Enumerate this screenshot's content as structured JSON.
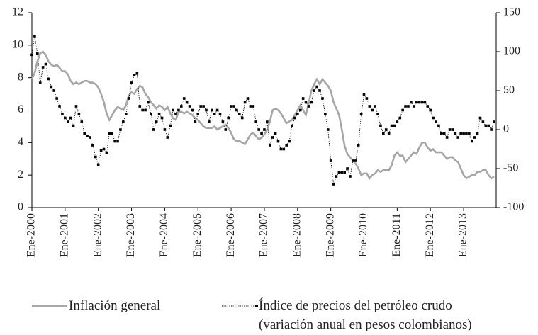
{
  "chart_data": {
    "type": "line",
    "categories": [
      "Ene-2000",
      null,
      null,
      null,
      null,
      null,
      null,
      null,
      null,
      null,
      null,
      null,
      "Ene-2001",
      null,
      null,
      null,
      null,
      null,
      null,
      null,
      null,
      null,
      null,
      null,
      "Ene-2002",
      null,
      null,
      null,
      null,
      null,
      null,
      null,
      null,
      null,
      null,
      null,
      "Ene-2003",
      null,
      null,
      null,
      null,
      null,
      null,
      null,
      null,
      null,
      null,
      null,
      "Ene-2004",
      null,
      null,
      null,
      null,
      null,
      null,
      null,
      null,
      null,
      null,
      null,
      "Ene-2005",
      null,
      null,
      null,
      null,
      null,
      null,
      null,
      null,
      null,
      null,
      null,
      "Ene-2006",
      null,
      null,
      null,
      null,
      null,
      null,
      null,
      null,
      null,
      null,
      null,
      "Ene-2007",
      null,
      null,
      null,
      null,
      null,
      null,
      null,
      null,
      null,
      null,
      null,
      "Ene-2008",
      null,
      null,
      null,
      null,
      null,
      null,
      null,
      null,
      null,
      null,
      null,
      "Ene-2009",
      null,
      null,
      null,
      null,
      null,
      null,
      null,
      null,
      null,
      null,
      null,
      "Ene-2010",
      null,
      null,
      null,
      null,
      null,
      null,
      null,
      null,
      null,
      null,
      null,
      "Ene-2011",
      null,
      null,
      null,
      null,
      null,
      null,
      null,
      null,
      null,
      null,
      null,
      "Ene-2012",
      null,
      null,
      null,
      null,
      null,
      null,
      null,
      null,
      null,
      null,
      null,
      "Ene-2013",
      null,
      null,
      null,
      null,
      null,
      null,
      null,
      null,
      null,
      null,
      null
    ],
    "series": [
      {
        "name": "Inflación general",
        "color": "#a6a6a6",
        "axis": "y",
        "values": [
          7.9,
          8.3,
          9.0,
          9.5,
          9.6,
          9.4,
          9.0,
          8.8,
          8.7,
          8.8,
          8.6,
          8.4,
          8.4,
          8.2,
          7.8,
          7.6,
          7.7,
          7.6,
          7.7,
          7.8,
          7.8,
          7.7,
          7.7,
          7.6,
          7.4,
          7.0,
          6.5,
          5.8,
          5.4,
          5.7,
          6.0,
          6.2,
          6.1,
          6.0,
          6.3,
          6.9,
          7.1,
          7.0,
          7.3,
          7.5,
          7.4,
          7.0,
          6.8,
          6.5,
          6.3,
          6.1,
          6.3,
          6.2,
          6.0,
          6.2,
          5.8,
          5.5,
          5.4,
          5.9,
          5.9,
          5.8,
          5.9,
          5.8,
          5.7,
          5.5,
          5.4,
          5.2,
          5.0,
          4.9,
          4.9,
          4.9,
          5.0,
          4.8,
          4.9,
          5.0,
          5.1,
          4.9,
          4.6,
          4.2,
          4.1,
          4.1,
          4.0,
          3.9,
          4.2,
          4.5,
          4.6,
          4.4,
          4.2,
          4.3,
          4.5,
          4.8,
          5.3,
          6.0,
          6.1,
          6.0,
          5.8,
          5.5,
          5.2,
          5.3,
          5.4,
          5.7,
          6.0,
          6.3,
          6.0,
          5.7,
          6.4,
          7.2,
          7.6,
          7.9,
          7.6,
          7.9,
          7.7,
          7.5,
          7.2,
          6.5,
          6.1,
          5.7,
          4.8,
          3.8,
          3.3,
          3.1,
          2.9,
          2.7,
          2.4,
          2.0,
          2.1,
          2.1,
          1.8,
          2.0,
          2.1,
          2.3,
          2.2,
          2.3,
          2.3,
          2.3,
          2.6,
          3.2,
          3.4,
          3.2,
          3.2,
          2.8,
          3.0,
          3.2,
          3.4,
          3.3,
          3.7,
          4.0,
          4.0,
          3.7,
          3.5,
          3.6,
          3.4,
          3.4,
          3.4,
          3.2,
          3.0,
          3.1,
          3.1,
          2.9,
          2.8,
          2.4,
          2.0,
          1.8,
          1.9,
          2.0,
          2.0,
          2.2,
          2.2,
          2.3,
          2.3,
          2.0,
          1.8,
          1.9
        ]
      },
      {
        "name": "Índice de precios del petróleo crudo\n(variación anual en pesos colombianos)",
        "color": "#000000",
        "axis": "y2",
        "values": [
          96,
          120,
          98,
          60,
          80,
          84,
          65,
          55,
          50,
          40,
          30,
          20,
          15,
          10,
          15,
          5,
          30,
          20,
          10,
          -5,
          -8,
          -10,
          -20,
          -35,
          -45,
          -27,
          -25,
          -30,
          -5,
          -5,
          -15,
          -15,
          0,
          10,
          20,
          40,
          60,
          70,
          72,
          30,
          25,
          25,
          35,
          20,
          0,
          10,
          20,
          15,
          0,
          -10,
          5,
          25,
          20,
          25,
          30,
          40,
          35,
          30,
          25,
          10,
          20,
          30,
          30,
          25,
          10,
          25,
          20,
          25,
          20,
          10,
          0,
          15,
          30,
          30,
          25,
          20,
          15,
          35,
          40,
          30,
          30,
          10,
          0,
          -5,
          0,
          10,
          -20,
          -10,
          -5,
          -15,
          -25,
          -25,
          -20,
          -15,
          5,
          15,
          20,
          25,
          40,
          35,
          30,
          35,
          50,
          55,
          50,
          40,
          20,
          0,
          -40,
          -70,
          -60,
          -55,
          -55,
          -55,
          -50,
          -60,
          -40,
          -40,
          -20,
          20,
          45,
          40,
          30,
          25,
          30,
          20,
          5,
          -5,
          0,
          -5,
          5,
          5,
          10,
          15,
          25,
          30,
          30,
          35,
          30,
          35,
          35,
          35,
          35,
          30,
          25,
          15,
          10,
          5,
          -5,
          -5,
          -10,
          0,
          0,
          -5,
          -10,
          -5,
          -5,
          -5,
          -5,
          -15,
          -10,
          -5,
          15,
          10,
          5,
          5,
          0,
          10
        ]
      }
    ],
    "ylim": [
      0,
      12
    ],
    "yticks": [
      0,
      2,
      4,
      6,
      8,
      10,
      12
    ],
    "y2lim": [
      -100,
      150
    ],
    "y2ticks": [
      -100,
      -50,
      0,
      50,
      100,
      150
    ]
  }
}
